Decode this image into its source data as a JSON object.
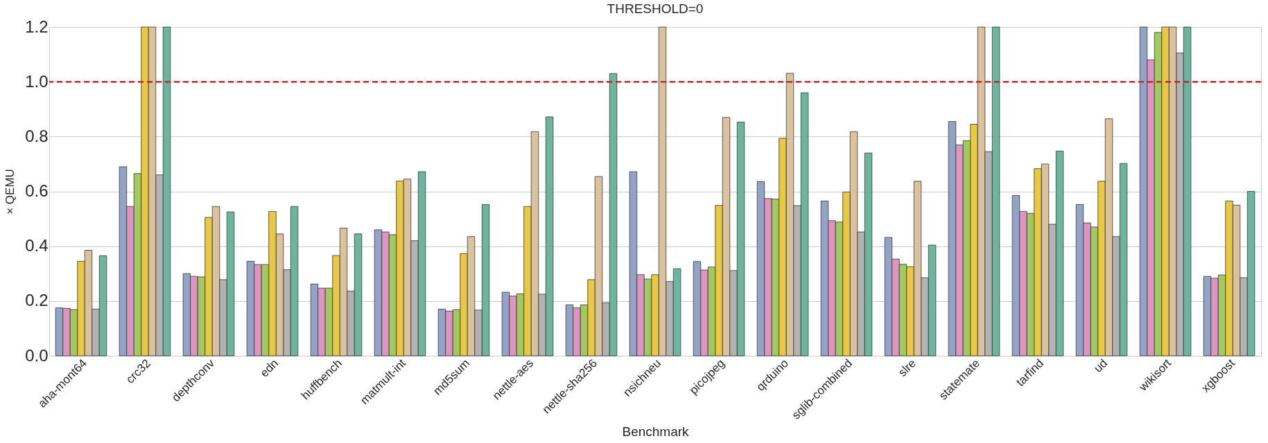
{
  "chart_data": {
    "type": "bar",
    "title": "THRESHOLD=0",
    "xlabel": "Benchmark",
    "ylabel": "× QEMU",
    "categories": [
      "aha-mont64",
      "crc32",
      "depthconv",
      "edn",
      "huffbench",
      "matmult-int",
      "md5sum",
      "nettle-aes",
      "nettle-sha256",
      "nsichneu",
      "picojpeg",
      "qrduino",
      "sglib-combined",
      "slre",
      "statemate",
      "tarfind",
      "ud",
      "wikisort",
      "xgboost"
    ],
    "series": [
      {
        "color": "#91a3c6",
        "values": [
          0.175,
          0.69,
          0.3,
          0.345,
          0.262,
          0.46,
          0.17,
          0.232,
          0.186,
          0.672,
          0.344,
          0.636,
          0.565,
          0.432,
          0.855,
          0.585,
          0.552,
          1.2,
          0.29
        ]
      },
      {
        "color": "#df95c3",
        "values": [
          0.173,
          0.545,
          0.29,
          0.333,
          0.247,
          0.452,
          0.163,
          0.218,
          0.175,
          0.296,
          0.313,
          0.574,
          0.493,
          0.353,
          0.77,
          0.527,
          0.485,
          1.08,
          0.283
        ]
      },
      {
        "color": "#a3c964",
        "values": [
          0.168,
          0.665,
          0.288,
          0.333,
          0.247,
          0.442,
          0.168,
          0.226,
          0.186,
          0.28,
          0.324,
          0.572,
          0.488,
          0.334,
          0.785,
          0.52,
          0.47,
          1.18,
          0.295
        ]
      },
      {
        "color": "#e8c844",
        "values": [
          0.345,
          1.2,
          0.505,
          0.527,
          0.366,
          0.638,
          0.373,
          0.545,
          0.278,
          0.296,
          0.549,
          0.794,
          0.598,
          0.325,
          0.845,
          0.683,
          0.637,
          1.2,
          0.565
        ]
      },
      {
        "color": "#dcc29a",
        "values": [
          0.385,
          1.2,
          0.545,
          0.445,
          0.466,
          0.645,
          0.435,
          0.818,
          0.654,
          1.2,
          0.87,
          1.031,
          0.818,
          0.637,
          1.2,
          0.7,
          0.865,
          1.2,
          0.55
        ]
      },
      {
        "color": "#b3b3b3",
        "values": [
          0.17,
          0.66,
          0.278,
          0.314,
          0.236,
          0.42,
          0.167,
          0.225,
          0.193,
          0.271,
          0.311,
          0.548,
          0.452,
          0.285,
          0.745,
          0.48,
          0.435,
          1.105,
          0.285
        ]
      },
      {
        "color": "#6db59f",
        "values": [
          0.365,
          1.2,
          0.525,
          0.545,
          0.445,
          0.672,
          0.552,
          0.872,
          1.03,
          0.318,
          0.853,
          0.96,
          0.74,
          0.404,
          1.2,
          0.747,
          0.702,
          1.2,
          0.6
        ]
      }
    ],
    "ylim": [
      0,
      1.2
    ],
    "yticks": [
      {
        "value": 0,
        "label": "0.0"
      },
      {
        "value": 0.2,
        "label": "0.2"
      },
      {
        "value": 0.4,
        "label": "0.4"
      },
      {
        "value": 0.6,
        "label": "0.6"
      },
      {
        "value": 0.8,
        "label": "0.8"
      },
      {
        "value": 1,
        "label": "1.0"
      },
      {
        "value": 1.2,
        "label": "1.2"
      }
    ],
    "ref_lines": [
      {
        "axis": "y",
        "value": 1,
        "color": "#c0272d",
        "line_style": "dashed"
      }
    ],
    "grid": "y",
    "legend": false
  }
}
